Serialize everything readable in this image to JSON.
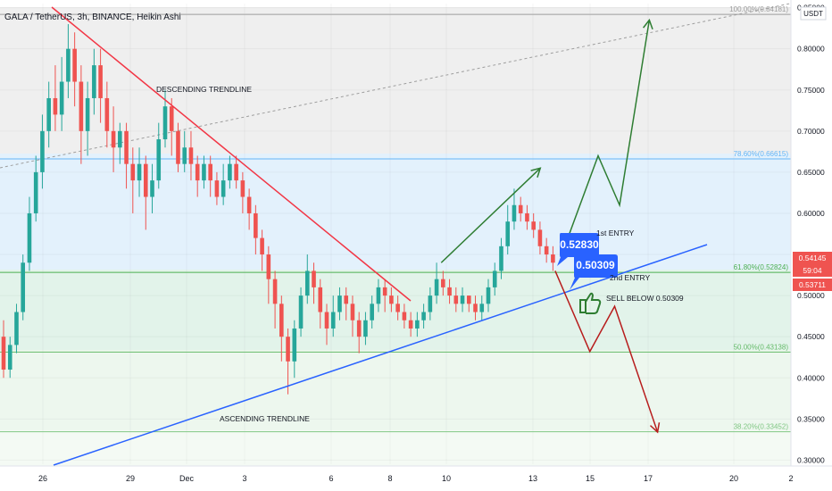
{
  "header": {
    "title": "GALA / TetherUS, 3h, BINANCE, Heikin Ashi"
  },
  "colors": {
    "bull": "#26a69a",
    "bear": "#ef5350",
    "descending": "#f23645",
    "ascending": "#2962ff",
    "green_arrow": "#2e7d32",
    "red_arrow": "#b71c1c",
    "callout": "#2962ff",
    "fib_100": "#9e9e9e",
    "fib_786": "#64b5f6",
    "fib_618": "#4caf50",
    "fib_50": "#66bb6a",
    "fib_382": "#81c784"
  },
  "price_tags": {
    "upper": "0.54145",
    "timer": "59:04",
    "lower": "0.53711"
  },
  "chart_data": {
    "type": "candlestick",
    "title": "GALA / TetherUS, 3h, BINANCE, Heikin Ashi",
    "y_axis": {
      "unit": "USDT",
      "ylim": [
        0.295,
        0.855
      ],
      "ticks": [
        "0.30000",
        "0.35000",
        "0.40000",
        "0.45000",
        "0.50000",
        "0.55000",
        "0.60000",
        "0.65000",
        "0.70000",
        "0.75000",
        "0.80000",
        "0.85000"
      ]
    },
    "x_axis": {
      "ticks": [
        "26",
        "29",
        "Dec",
        "3",
        "6",
        "8",
        "10",
        "13",
        "15",
        "17",
        "20",
        "2"
      ]
    },
    "fib_levels": [
      {
        "label": "100.00%(0.84181)",
        "value": 0.84181
      },
      {
        "label": "78.60%(0.66615)",
        "value": 0.66615
      },
      {
        "label": "61.80%(0.52824)",
        "value": 0.52824
      },
      {
        "label": "50.00%(0.43138)",
        "value": 0.43138
      },
      {
        "label": "38.20%(0.33452)",
        "value": 0.33452
      }
    ],
    "annotations": {
      "descending": "DESCENDING TRENDLINE",
      "ascending": "ASCENDING TRENDLINE",
      "first_entry": "1st ENTRY",
      "second_entry": "2nd ENTRY",
      "sell_below": "SELL BELOW 0.50309",
      "callout_1": "0.52830",
      "callout_2": "0.50309"
    },
    "candles": [
      [
        0.45,
        0.41,
        0.47,
        0.4
      ],
      [
        0.41,
        0.44,
        0.45,
        0.4
      ],
      [
        0.44,
        0.48,
        0.49,
        0.43
      ],
      [
        0.48,
        0.54,
        0.55,
        0.47
      ],
      [
        0.54,
        0.6,
        0.62,
        0.53
      ],
      [
        0.6,
        0.65,
        0.67,
        0.59
      ],
      [
        0.65,
        0.7,
        0.72,
        0.63
      ],
      [
        0.7,
        0.74,
        0.76,
        0.68
      ],
      [
        0.74,
        0.72,
        0.78,
        0.7
      ],
      [
        0.72,
        0.76,
        0.79,
        0.7
      ],
      [
        0.76,
        0.8,
        0.83,
        0.74
      ],
      [
        0.8,
        0.76,
        0.82,
        0.73
      ],
      [
        0.76,
        0.7,
        0.78,
        0.66
      ],
      [
        0.7,
        0.74,
        0.76,
        0.67
      ],
      [
        0.74,
        0.78,
        0.8,
        0.72
      ],
      [
        0.78,
        0.74,
        0.8,
        0.71
      ],
      [
        0.74,
        0.7,
        0.76,
        0.68
      ],
      [
        0.7,
        0.68,
        0.73,
        0.65
      ],
      [
        0.68,
        0.7,
        0.71,
        0.66
      ],
      [
        0.7,
        0.66,
        0.71,
        0.63
      ],
      [
        0.66,
        0.64,
        0.68,
        0.6
      ],
      [
        0.64,
        0.66,
        0.68,
        0.62
      ],
      [
        0.66,
        0.62,
        0.67,
        0.58
      ],
      [
        0.62,
        0.64,
        0.66,
        0.6
      ],
      [
        0.64,
        0.69,
        0.71,
        0.63
      ],
      [
        0.69,
        0.73,
        0.75,
        0.68
      ],
      [
        0.73,
        0.7,
        0.74,
        0.67
      ],
      [
        0.7,
        0.66,
        0.71,
        0.65
      ],
      [
        0.66,
        0.68,
        0.7,
        0.65
      ],
      [
        0.68,
        0.66,
        0.7,
        0.64
      ],
      [
        0.66,
        0.64,
        0.67,
        0.62
      ],
      [
        0.64,
        0.66,
        0.67,
        0.63
      ],
      [
        0.66,
        0.64,
        0.67,
        0.62
      ],
      [
        0.64,
        0.62,
        0.65,
        0.61
      ],
      [
        0.62,
        0.64,
        0.66,
        0.61
      ],
      [
        0.64,
        0.66,
        0.67,
        0.63
      ],
      [
        0.66,
        0.64,
        0.67,
        0.63
      ],
      [
        0.64,
        0.62,
        0.65,
        0.6
      ],
      [
        0.62,
        0.6,
        0.63,
        0.58
      ],
      [
        0.6,
        0.57,
        0.61,
        0.55
      ],
      [
        0.57,
        0.55,
        0.58,
        0.53
      ],
      [
        0.55,
        0.52,
        0.56,
        0.49
      ],
      [
        0.52,
        0.49,
        0.53,
        0.46
      ],
      [
        0.49,
        0.45,
        0.5,
        0.42
      ],
      [
        0.45,
        0.42,
        0.46,
        0.38
      ],
      [
        0.42,
        0.46,
        0.47,
        0.4
      ],
      [
        0.46,
        0.5,
        0.51,
        0.45
      ],
      [
        0.5,
        0.53,
        0.55,
        0.49
      ],
      [
        0.53,
        0.51,
        0.54,
        0.49
      ],
      [
        0.51,
        0.48,
        0.52,
        0.46
      ],
      [
        0.48,
        0.46,
        0.49,
        0.44
      ],
      [
        0.46,
        0.48,
        0.5,
        0.45
      ],
      [
        0.48,
        0.5,
        0.51,
        0.47
      ],
      [
        0.5,
        0.49,
        0.51,
        0.47
      ],
      [
        0.49,
        0.47,
        0.5,
        0.45
      ],
      [
        0.47,
        0.45,
        0.48,
        0.43
      ],
      [
        0.45,
        0.47,
        0.48,
        0.44
      ],
      [
        0.47,
        0.49,
        0.5,
        0.46
      ],
      [
        0.49,
        0.51,
        0.52,
        0.48
      ],
      [
        0.51,
        0.5,
        0.52,
        0.48
      ],
      [
        0.5,
        0.49,
        0.51,
        0.48
      ],
      [
        0.49,
        0.48,
        0.5,
        0.47
      ],
      [
        0.48,
        0.47,
        0.49,
        0.46
      ],
      [
        0.47,
        0.46,
        0.48,
        0.45
      ],
      [
        0.46,
        0.47,
        0.48,
        0.45
      ],
      [
        0.47,
        0.48,
        0.49,
        0.46
      ],
      [
        0.48,
        0.5,
        0.51,
        0.47
      ],
      [
        0.5,
        0.52,
        0.54,
        0.49
      ],
      [
        0.52,
        0.51,
        0.53,
        0.5
      ],
      [
        0.51,
        0.5,
        0.52,
        0.49
      ],
      [
        0.5,
        0.49,
        0.51,
        0.48
      ],
      [
        0.49,
        0.5,
        0.51,
        0.48
      ],
      [
        0.5,
        0.49,
        0.5,
        0.48
      ],
      [
        0.49,
        0.48,
        0.5,
        0.47
      ],
      [
        0.48,
        0.49,
        0.5,
        0.47
      ],
      [
        0.49,
        0.51,
        0.52,
        0.48
      ],
      [
        0.51,
        0.53,
        0.54,
        0.5
      ],
      [
        0.53,
        0.56,
        0.57,
        0.52
      ],
      [
        0.56,
        0.59,
        0.61,
        0.55
      ],
      [
        0.59,
        0.61,
        0.63,
        0.58
      ],
      [
        0.61,
        0.6,
        0.62,
        0.59
      ],
      [
        0.6,
        0.59,
        0.61,
        0.58
      ],
      [
        0.59,
        0.58,
        0.6,
        0.57
      ],
      [
        0.58,
        0.56,
        0.59,
        0.55
      ],
      [
        0.56,
        0.55,
        0.57,
        0.54
      ],
      [
        0.55,
        0.54,
        0.56,
        0.53
      ]
    ],
    "arrows": {
      "up_small": [
        [
          26.5,
          0.54
        ],
        [
          32.5,
          0.655
        ]
      ],
      "green_path": [
        [
          33.8,
          0.55
        ],
        [
          36.0,
          0.67
        ],
        [
          37.3,
          0.61
        ],
        [
          39.1,
          0.835
        ]
      ],
      "red_path": [
        [
          33.4,
          0.53
        ],
        [
          35.5,
          0.432
        ],
        [
          37.0,
          0.487
        ],
        [
          39.6,
          0.334
        ]
      ]
    }
  }
}
